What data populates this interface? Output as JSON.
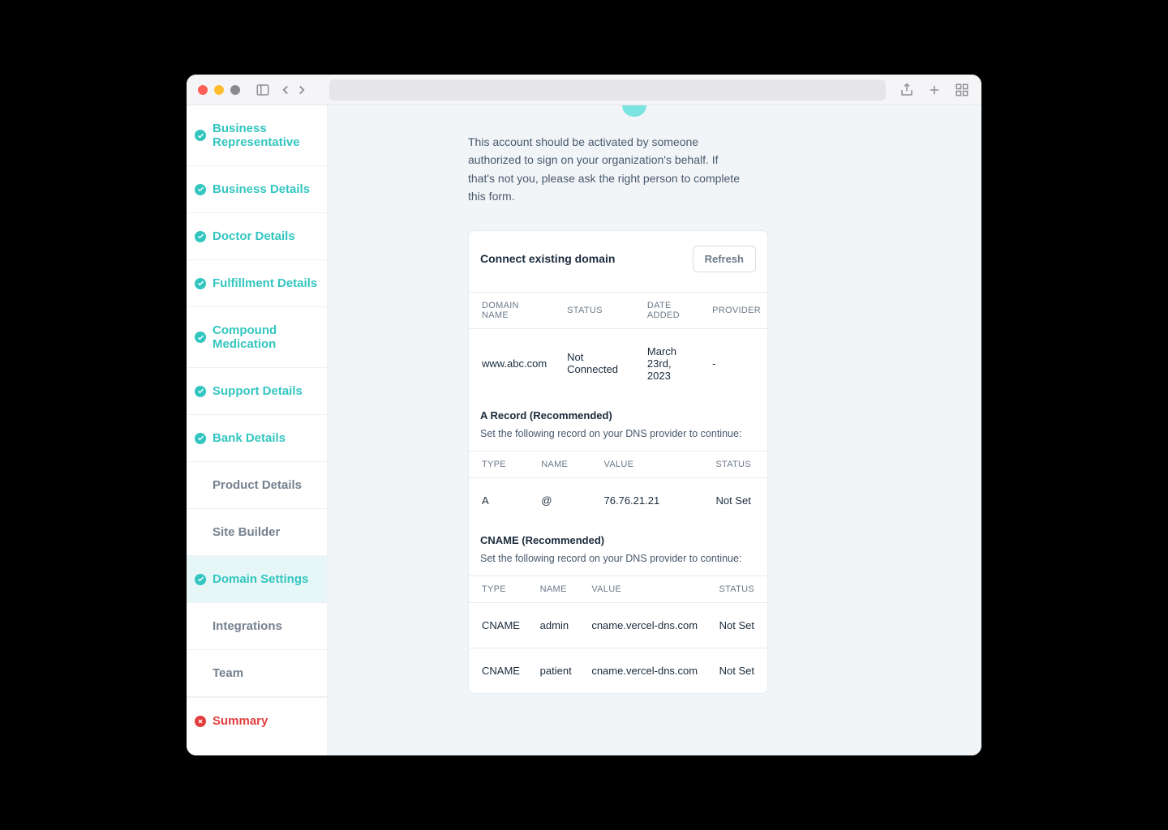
{
  "colors": {
    "accent": "#33c6c0",
    "error": "#e23d3d",
    "status_red": "#d9362f",
    "text_muted": "#6c7a89",
    "text_dark": "#1a2b3c",
    "bg_main": "#f2f5f8"
  },
  "sidebar": {
    "items": [
      {
        "label": "Business Representative",
        "state": "done"
      },
      {
        "label": "Business Details",
        "state": "done"
      },
      {
        "label": "Doctor Details",
        "state": "done"
      },
      {
        "label": "Fulfillment Details",
        "state": "done"
      },
      {
        "label": "Compound Medication",
        "state": "done"
      },
      {
        "label": "Support Details",
        "state": "done"
      },
      {
        "label": "Bank Details",
        "state": "done"
      },
      {
        "label": "Product Details",
        "state": "pending"
      },
      {
        "label": "Site Builder",
        "state": "pending"
      },
      {
        "label": "Domain Settings",
        "state": "done",
        "active": true
      },
      {
        "label": "Integrations",
        "state": "pending"
      },
      {
        "label": "Team",
        "state": "pending"
      }
    ],
    "summary": {
      "label": "Summary",
      "state": "error"
    }
  },
  "main": {
    "intro": "This account should be activated by someone authorized to sign on your organization's behalf. If that's not you, please ask the right person to complete this form.",
    "card_title": "Connect existing domain",
    "refresh_label": "Refresh",
    "domain_table": {
      "headers": [
        "DOMAIN NAME",
        "STATUS",
        "DATE ADDED",
        "PROVIDER"
      ],
      "row": {
        "domain": "www.abc.com",
        "status": "Not Connected",
        "date": "March 23rd, 2023",
        "provider": "-"
      }
    },
    "a_record": {
      "title": "A Record (Recommended)",
      "desc": "Set the following record on your DNS provider to continue:",
      "headers": [
        "TYPE",
        "NAME",
        "VALUE",
        "STATUS"
      ],
      "row": {
        "type": "A",
        "name": "@",
        "value": "76.76.21.21",
        "status": "Not Set"
      }
    },
    "cname": {
      "title": "CNAME (Recommended)",
      "desc": "Set the following record on your DNS provider to continue:",
      "headers": [
        "TYPE",
        "NAME",
        "VALUE",
        "STATUS"
      ],
      "rows": [
        {
          "type": "CNAME",
          "name": "admin",
          "value": "cname.vercel-dns.com",
          "status": "Not Set"
        },
        {
          "type": "CNAME",
          "name": "patient",
          "value": "cname.vercel-dns.com",
          "status": "Not Set"
        }
      ]
    }
  }
}
